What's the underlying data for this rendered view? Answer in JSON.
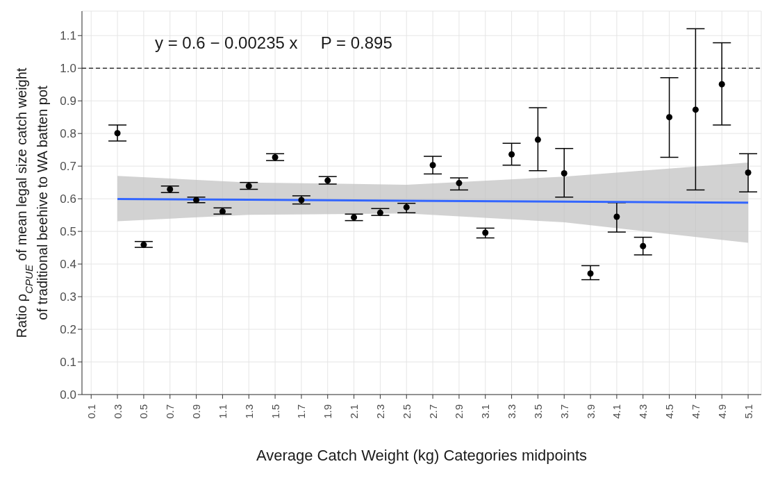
{
  "chart_data": {
    "type": "scatter",
    "xlabel": "Average Catch Weight (kg) Categories midpoints",
    "ylabel": "Ratio ρ$_{CPUE}$ of mean legal size catch weight\nof traditional beehive to WA batten pot",
    "annotations": [
      "y = 0.6 − 0.00235 x     P = 0.895"
    ],
    "xlim": [
      0.03,
      5.2
    ],
    "xticks": [
      0.1,
      0.3,
      0.5,
      0.7,
      0.9,
      1.1,
      1.3,
      1.5,
      1.7,
      1.9,
      2.1,
      2.3,
      2.5,
      2.7,
      2.9,
      3.1,
      3.3,
      3.5,
      3.7,
      3.9,
      4.1,
      4.3,
      4.5,
      4.7,
      4.9,
      5.1
    ],
    "ylim": [
      0,
      1.175
    ],
    "yticks": [
      {
        "value": 0,
        "label": "0.0"
      },
      0.1,
      0.2,
      0.3,
      0.4,
      0.5,
      0.6,
      0.7,
      0.8,
      0.9,
      {
        "value": 1,
        "label": "1.0"
      },
      1.1
    ],
    "grid": true,
    "ref_lines": [
      {
        "axis": "y",
        "value": 1,
        "line_style": "dashed",
        "color": "#333333"
      }
    ],
    "series": [
      {
        "marker": "circle",
        "color": "#000000",
        "x": [
          0.3,
          0.5,
          0.7,
          0.9,
          1.1,
          1.3,
          1.5,
          1.7,
          1.9,
          2.1,
          2.3,
          2.5,
          2.7,
          2.9,
          3.1,
          3.3,
          3.5,
          3.7,
          3.9,
          4.1,
          4.3,
          4.5,
          4.7,
          4.9,
          5.1
        ],
        "values": [
          0.801,
          0.459,
          0.629,
          0.596,
          0.561,
          0.639,
          0.727,
          0.596,
          0.656,
          0.543,
          0.557,
          0.574,
          0.703,
          0.648,
          0.496,
          0.736,
          0.781,
          0.678,
          0.371,
          0.545,
          0.455,
          0.85,
          0.873,
          0.951,
          0.68
        ],
        "errors": [
          [
            0.777,
            0.826
          ],
          [
            0.451,
            0.469
          ],
          [
            0.619,
            0.639
          ],
          [
            0.588,
            0.605
          ],
          [
            0.553,
            0.572
          ],
          [
            0.629,
            0.65
          ],
          [
            0.717,
            0.738
          ],
          [
            0.584,
            0.609
          ],
          [
            0.645,
            0.668
          ],
          [
            0.533,
            0.553
          ],
          [
            0.549,
            0.57
          ],
          [
            0.557,
            0.586
          ],
          [
            0.676,
            0.73
          ],
          [
            0.627,
            0.664
          ],
          [
            0.48,
            0.51
          ],
          [
            0.703,
            0.77
          ],
          [
            0.686,
            0.879
          ],
          [
            0.605,
            0.754
          ],
          [
            0.352,
            0.395
          ],
          [
            0.498,
            0.588
          ],
          [
            0.428,
            0.482
          ],
          [
            0.727,
            0.971
          ],
          [
            0.627,
            1.121
          ],
          [
            0.826,
            1.078
          ],
          [
            0.621,
            0.738
          ]
        ]
      },
      {
        "type": "line",
        "color": "#3366ff",
        "x": [
          0.3,
          1.3,
          2.5,
          3.7,
          5.1
        ],
        "values": [
          0.599,
          0.597,
          0.594,
          0.591,
          0.588
        ],
        "lower": [
          0.531,
          0.551,
          0.555,
          0.528,
          0.465
        ],
        "upper": [
          0.67,
          0.65,
          0.643,
          0.668,
          0.711
        ]
      }
    ]
  }
}
